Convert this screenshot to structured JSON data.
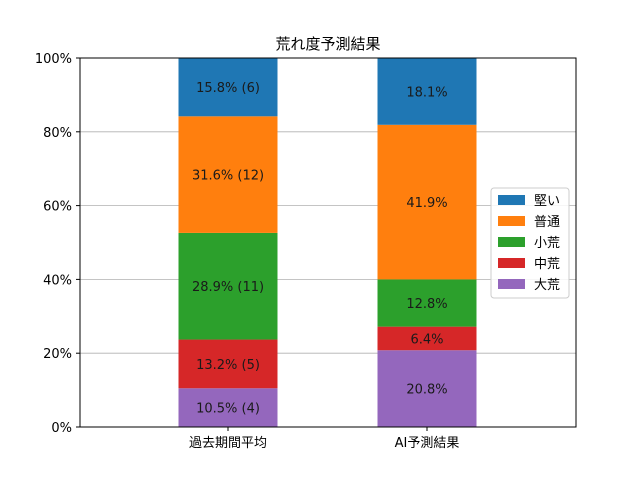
{
  "chart_data": {
    "type": "bar",
    "stacked": true,
    "title": "荒れ度予測結果",
    "xlabel": "",
    "ylabel": "",
    "categories": [
      "過去期間平均",
      "AI予測結果"
    ],
    "ylim": [
      0,
      100
    ],
    "yticks": [
      0,
      20,
      40,
      60,
      80,
      100
    ],
    "ytick_labels": [
      "0%",
      "20%",
      "40%",
      "60%",
      "80%",
      "100%"
    ],
    "grid": true,
    "legend_position": "right",
    "series": [
      {
        "name": "大荒",
        "color": "#9467bd",
        "values": [
          10.5,
          20.8
        ],
        "labels": [
          "10.5% (4)",
          "20.8%"
        ]
      },
      {
        "name": "中荒",
        "color": "#d62728",
        "values": [
          13.2,
          6.4
        ],
        "labels": [
          "13.2% (5)",
          "6.4%"
        ]
      },
      {
        "name": "小荒",
        "color": "#2ca02c",
        "values": [
          28.9,
          12.8
        ],
        "labels": [
          "28.9% (11)",
          "12.8%"
        ]
      },
      {
        "name": "普通",
        "color": "#ff7f0e",
        "values": [
          31.6,
          41.9
        ],
        "labels": [
          "31.6% (12)",
          "41.9%"
        ]
      },
      {
        "name": "堅い",
        "color": "#1f77b4",
        "values": [
          15.8,
          18.1
        ],
        "labels": [
          "15.8% (6)",
          "18.1%"
        ]
      }
    ],
    "legend_order": [
      "堅い",
      "普通",
      "小荒",
      "中荒",
      "大荒"
    ]
  }
}
